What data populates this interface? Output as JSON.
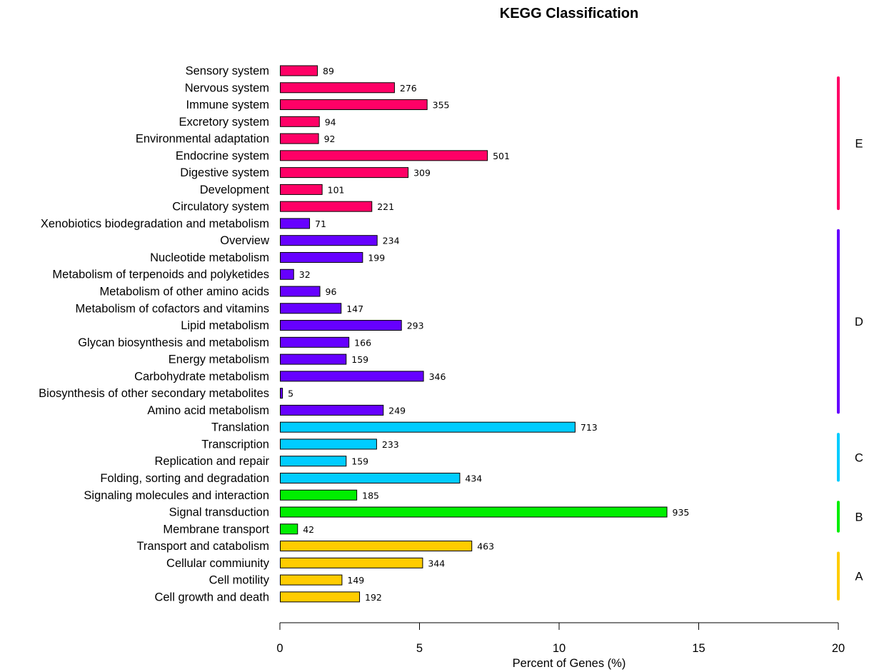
{
  "chart_data": {
    "type": "bar",
    "orientation": "horizontal",
    "title": "KEGG Classification",
    "xlabel": "Percent of Genes (%)",
    "xlim": [
      0,
      20
    ],
    "xticks": [
      "0",
      "5",
      "10",
      "15",
      "20"
    ],
    "grid": false,
    "categories": [
      "Sensory system",
      "Nervous system",
      "Immune system",
      "Excretory system",
      "Environmental adaptation",
      "Endocrine system",
      "Digestive system",
      "Development",
      "Circulatory system",
      "Xenobiotics biodegradation and metabolism",
      "Overview",
      "Nucleotide metabolism",
      "Metabolism of terpenoids and polyketides",
      "Metabolism of other amino acids",
      "Metabolism of cofactors and vitamins",
      "Lipid metabolism",
      "Glycan biosynthesis and metabolism",
      "Energy metabolism",
      "Carbohydrate metabolism",
      "Biosynthesis of other secondary metabolites",
      "Amino acid metabolism",
      "Translation",
      "Transcription",
      "Replication and repair",
      "Folding, sorting and degradation",
      "Signaling molecules and interaction",
      "Signal transduction",
      "Membrane transport",
      "Transport and catabolism",
      "Cellular commiunity",
      "Cell motility",
      "Cell growth and death"
    ],
    "values": [
      1.33,
      4.09,
      5.26,
      1.4,
      1.37,
      7.42,
      4.58,
      1.5,
      3.28,
      1.05,
      3.47,
      2.95,
      0.48,
      1.42,
      2.18,
      4.34,
      2.46,
      2.36,
      5.13,
      0.08,
      3.69,
      10.56,
      3.45,
      2.36,
      6.43,
      2.74,
      13.85,
      0.62,
      6.86,
      5.1,
      2.21,
      2.84
    ],
    "counts": [
      "89",
      "276",
      "355",
      "94",
      "92",
      "501",
      "309",
      "101",
      "221",
      "71",
      "234",
      "199",
      "32",
      "96",
      "147",
      "293",
      "166",
      "159",
      "346",
      "5",
      "249",
      "713",
      "233",
      "159",
      "434",
      "185",
      "935",
      "42",
      "463",
      "344",
      "149",
      "192"
    ],
    "groups": [
      {
        "label": "E",
        "color": "#ff0066",
        "start": 0,
        "end": 8
      },
      {
        "label": "D",
        "color": "#6600ff",
        "start": 9,
        "end": 20
      },
      {
        "label": "C",
        "color": "#00ccff",
        "start": 21,
        "end": 24
      },
      {
        "label": "B",
        "color": "#00ee00",
        "start": 25,
        "end": 27
      },
      {
        "label": "A",
        "color": "#ffcc00",
        "start": 28,
        "end": 31
      }
    ]
  }
}
